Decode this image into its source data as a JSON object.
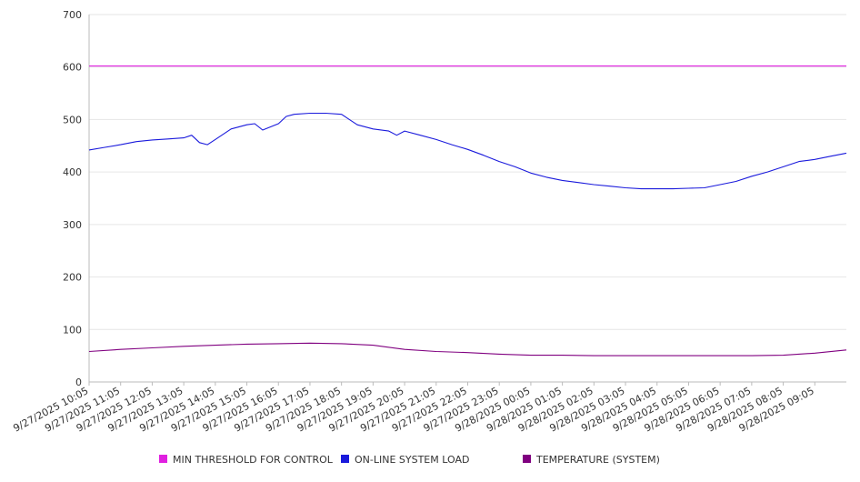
{
  "chart_data": {
    "type": "line",
    "title": "",
    "xlabel": "",
    "ylabel": "",
    "ylim": [
      0,
      700
    ],
    "yticks": [
      0,
      100,
      200,
      300,
      400,
      500,
      600,
      700
    ],
    "grid": true,
    "legend_position": "bottom",
    "x_tick_labels": [
      "9/27/2025 10:05",
      "9/27/2025 11:05",
      "9/27/2025 12:05",
      "9/27/2025 13:05",
      "9/27/2025 14:05",
      "9/27/2025 15:05",
      "9/27/2025 16:05",
      "9/27/2025 17:05",
      "9/27/2025 18:05",
      "9/27/2025 19:05",
      "9/27/2025 20:05",
      "9/27/2025 21:05",
      "9/27/2025 22:05",
      "9/27/2025 23:05",
      "9/28/2025 00:05",
      "9/28/2025 01:05",
      "9/28/2025 02:05",
      "9/28/2025 03:05",
      "9/28/2025 04:05",
      "9/28/2025 05:05",
      "9/28/2025 06:05",
      "9/28/2025 07:05",
      "9/28/2025 08:05",
      "9/28/2025 09:05"
    ],
    "x_range": [
      "9/27/2025 10:05",
      "9/28/2025 10:05"
    ],
    "series": [
      {
        "name": "MIN THRESHOLD FOR CONTROL",
        "color": "#e020e0",
        "x": [
          "9/27/2025 10:05",
          "9/28/2025 10:05"
        ],
        "values": [
          602,
          602
        ]
      },
      {
        "name": "ON-LINE SYSTEM LOAD",
        "color": "#1a1adc",
        "x": [
          "9/27/2025 10:05",
          "9/27/2025 10:35",
          "9/27/2025 11:05",
          "9/27/2025 11:35",
          "9/27/2025 12:05",
          "9/27/2025 12:35",
          "9/27/2025 13:05",
          "9/27/2025 13:20",
          "9/27/2025 13:35",
          "9/27/2025 13:50",
          "9/27/2025 14:05",
          "9/27/2025 14:35",
          "9/27/2025 15:05",
          "9/27/2025 15:20",
          "9/27/2025 15:35",
          "9/27/2025 15:50",
          "9/27/2025 16:05",
          "9/27/2025 16:20",
          "9/27/2025 16:35",
          "9/27/2025 17:05",
          "9/27/2025 17:35",
          "9/27/2025 18:05",
          "9/27/2025 18:35",
          "9/27/2025 19:05",
          "9/27/2025 19:35",
          "9/27/2025 19:50",
          "9/27/2025 20:05",
          "9/27/2025 20:35",
          "9/27/2025 21:05",
          "9/27/2025 21:35",
          "9/27/2025 22:05",
          "9/27/2025 22:35",
          "9/27/2025 23:05",
          "9/27/2025 23:35",
          "9/28/2025 00:05",
          "9/28/2025 00:35",
          "9/28/2025 01:05",
          "9/28/2025 01:35",
          "9/28/2025 02:05",
          "9/28/2025 02:35",
          "9/28/2025 03:05",
          "9/28/2025 03:35",
          "9/28/2025 04:05",
          "9/28/2025 04:35",
          "9/28/2025 05:05",
          "9/28/2025 05:35",
          "9/28/2025 06:05",
          "9/28/2025 06:35",
          "9/28/2025 07:05",
          "9/28/2025 07:35",
          "9/28/2025 08:05",
          "9/28/2025 08:35",
          "9/28/2025 09:05",
          "9/28/2025 09:35",
          "9/28/2025 10:05"
        ],
        "values": [
          442,
          447,
          452,
          458,
          461,
          463,
          465,
          470,
          456,
          452,
          462,
          482,
          490,
          492,
          480,
          486,
          492,
          506,
          510,
          512,
          512,
          510,
          490,
          482,
          478,
          470,
          478,
          470,
          462,
          452,
          443,
          432,
          420,
          410,
          398,
          390,
          384,
          380,
          376,
          373,
          370,
          368,
          368,
          368,
          369,
          370,
          376,
          382,
          392,
          400,
          410,
          420,
          424,
          430,
          436
        ]
      },
      {
        "name": "TEMPERATURE (SYSTEM)",
        "color": "#800080",
        "x": [
          "9/27/2025 10:05",
          "9/27/2025 11:05",
          "9/27/2025 12:05",
          "9/27/2025 13:05",
          "9/27/2025 14:05",
          "9/27/2025 15:05",
          "9/27/2025 16:05",
          "9/27/2025 17:05",
          "9/27/2025 18:05",
          "9/27/2025 19:05",
          "9/27/2025 20:05",
          "9/27/2025 21:05",
          "9/27/2025 22:05",
          "9/27/2025 23:05",
          "9/28/2025 00:05",
          "9/28/2025 01:05",
          "9/28/2025 02:05",
          "9/28/2025 03:05",
          "9/28/2025 04:05",
          "9/28/2025 05:05",
          "9/28/2025 06:05",
          "9/28/2025 07:05",
          "9/28/2025 08:05",
          "9/28/2025 09:05",
          "9/28/2025 10:05"
        ],
        "values": [
          58,
          62,
          65,
          68,
          70,
          72,
          73,
          74,
          73,
          70,
          62,
          58,
          56,
          53,
          51,
          51,
          50,
          50,
          50,
          50,
          50,
          50,
          51,
          55,
          61
        ]
      }
    ]
  }
}
